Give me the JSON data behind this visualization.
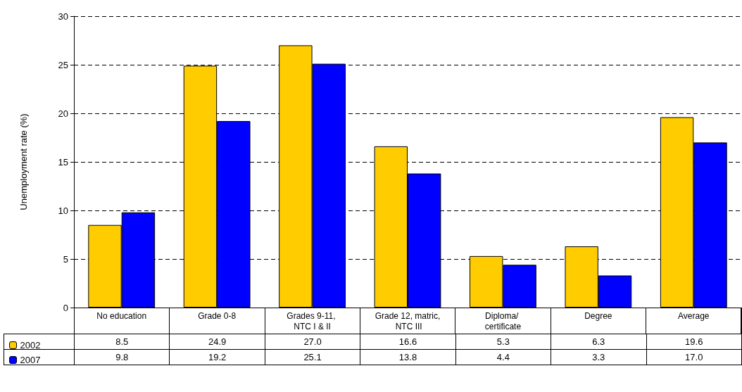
{
  "chart_data": {
    "type": "bar",
    "ylabel": "Unemployment rate (%)",
    "categories": [
      "No education",
      "Grade 0-8",
      "Grades 9-11, NTC I & II",
      "Grade 12, matric, NTC III",
      "Diploma/ certificate",
      "Degree",
      "Average"
    ],
    "series": [
      {
        "name": "2002",
        "color": "#ffcc00",
        "values": [
          8.5,
          24.9,
          27.0,
          16.6,
          5.3,
          6.3,
          19.6
        ],
        "value_labels": [
          "8.5",
          "24.9",
          "27.0",
          "16.6",
          "5.3",
          "6.3",
          "19.6"
        ]
      },
      {
        "name": "2007",
        "color": "#0000ff",
        "values": [
          9.8,
          19.2,
          25.1,
          13.8,
          4.4,
          3.3,
          17.0
        ],
        "value_labels": [
          "9.8",
          "19.2",
          "25.1",
          "13.8",
          "4.4",
          "3.3",
          "17.0"
        ]
      }
    ],
    "ylim": [
      0,
      30
    ],
    "yticks": [
      0,
      5,
      10,
      15,
      20,
      25,
      30
    ],
    "grid": "y",
    "legend": "bottom left"
  }
}
